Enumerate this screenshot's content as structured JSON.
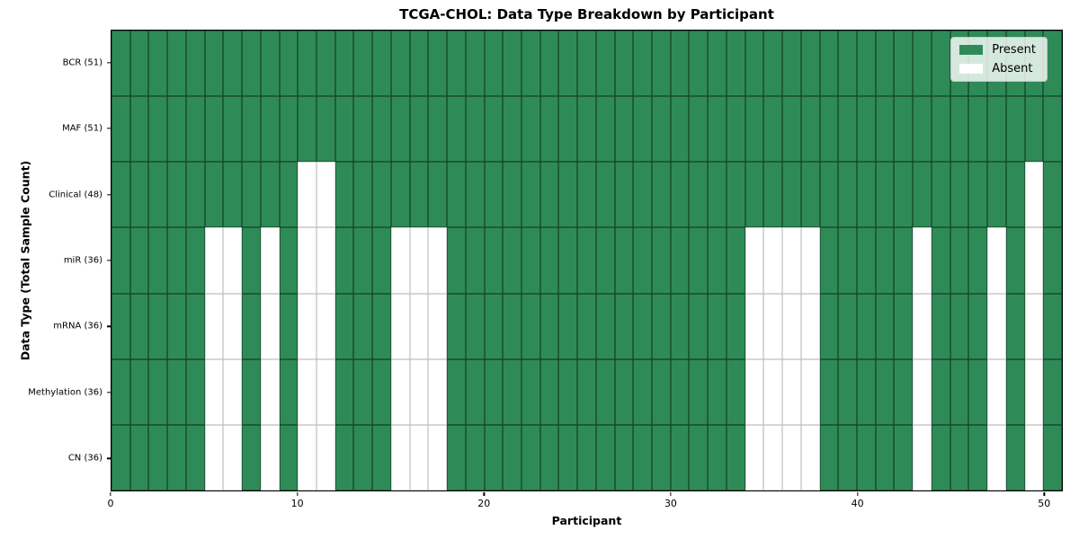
{
  "chart_data": {
    "type": "heatmap",
    "title": "TCGA-CHOL: Data Type Breakdown by Participant",
    "xlabel": "Participant",
    "ylabel": "Data Type (Total Sample Count)",
    "x_range": [
      0,
      51
    ],
    "n_participants": 51,
    "x_ticks": [
      0,
      10,
      20,
      30,
      40,
      50
    ],
    "grid": true,
    "legend_position": "upper right",
    "colors": {
      "present": "#2e8b57",
      "absent": "#ffffff"
    },
    "legend": [
      {
        "label": "Present",
        "value": "present"
      },
      {
        "label": "Absent",
        "value": "absent"
      }
    ],
    "rows": [
      {
        "name": "BCR",
        "label": "BCR (51)",
        "present_count": 51,
        "absent_participants": []
      },
      {
        "name": "MAF",
        "label": "MAF (51)",
        "present_count": 51,
        "absent_participants": []
      },
      {
        "name": "Clinical",
        "label": "Clinical (48)",
        "present_count": 48,
        "absent_participants": [
          10,
          11,
          49
        ]
      },
      {
        "name": "miR",
        "label": "miR (36)",
        "present_count": 36,
        "absent_participants": [
          5,
          6,
          8,
          10,
          11,
          15,
          16,
          17,
          34,
          35,
          36,
          37,
          43,
          47,
          49
        ]
      },
      {
        "name": "mRNA",
        "label": "mRNA (36)",
        "present_count": 36,
        "absent_participants": [
          5,
          6,
          8,
          10,
          11,
          15,
          16,
          17,
          34,
          35,
          36,
          37,
          43,
          47,
          49
        ]
      },
      {
        "name": "Methylation",
        "label": "Methylation (36)",
        "present_count": 36,
        "absent_participants": [
          5,
          6,
          8,
          10,
          11,
          15,
          16,
          17,
          34,
          35,
          36,
          37,
          43,
          47,
          49
        ]
      },
      {
        "name": "CN",
        "label": "CN (36)",
        "present_count": 36,
        "absent_participants": [
          5,
          6,
          8,
          10,
          11,
          15,
          16,
          17,
          34,
          35,
          36,
          37,
          43,
          47,
          49
        ]
      }
    ]
  }
}
